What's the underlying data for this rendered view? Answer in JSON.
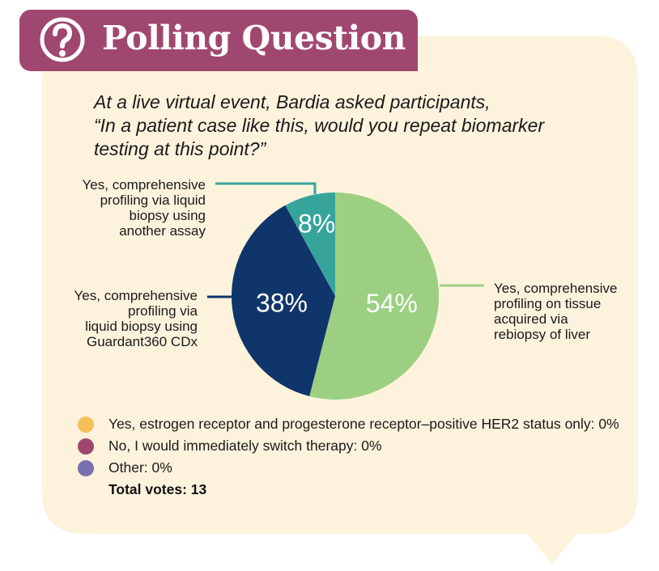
{
  "header": {
    "title": "Polling Question",
    "icon": "question-mark-icon"
  },
  "question": {
    "lines": [
      "At a live virtual event, Bardia asked participants,",
      "“In a patient case like this, would you repeat biomarker",
      "testing at this point?”"
    ]
  },
  "chart_data": {
    "type": "pie",
    "title": "",
    "slices": [
      {
        "name": "Yes, comprehensive profiling on tissue acquired via rebiopsy of liver",
        "value": 54,
        "label": "54%",
        "color": "#9ccf82"
      },
      {
        "name": "Yes, comprehensive profiling via liquid biopsy using Guardant360 CDx",
        "value": 38,
        "label": "38%",
        "color": "#10356a"
      },
      {
        "name": "Yes, comprehensive profiling via liquid biopsy using another assay",
        "value": 8,
        "label": "8%",
        "color": "#37a49c"
      }
    ],
    "annotations": {
      "tissue": [
        "Yes, comprehensive",
        "profiling on tissue",
        "acquired via",
        "rebiopsy of liver"
      ],
      "guardant": [
        "Yes, comprehensive",
        "profiling via",
        "liquid biopsy using",
        "Guardant360 CDx"
      ],
      "other_assay": [
        "Yes, comprehensive",
        "profiling via liquid",
        "biopsy using",
        "another assay"
      ]
    }
  },
  "legend": {
    "items": [
      {
        "label": "Yes, estrogen receptor and progesterone receptor–positive HER2 status only: 0%",
        "color": "#f6bf57"
      },
      {
        "label": "No, I would immediately switch therapy: 0%",
        "color": "#a0476f"
      },
      {
        "label": "Other: 0%",
        "color": "#7a6fae"
      }
    ],
    "total": "Total votes: 13"
  },
  "colors": {
    "bubble": "#fdf3dd",
    "header": "#a0476f"
  }
}
